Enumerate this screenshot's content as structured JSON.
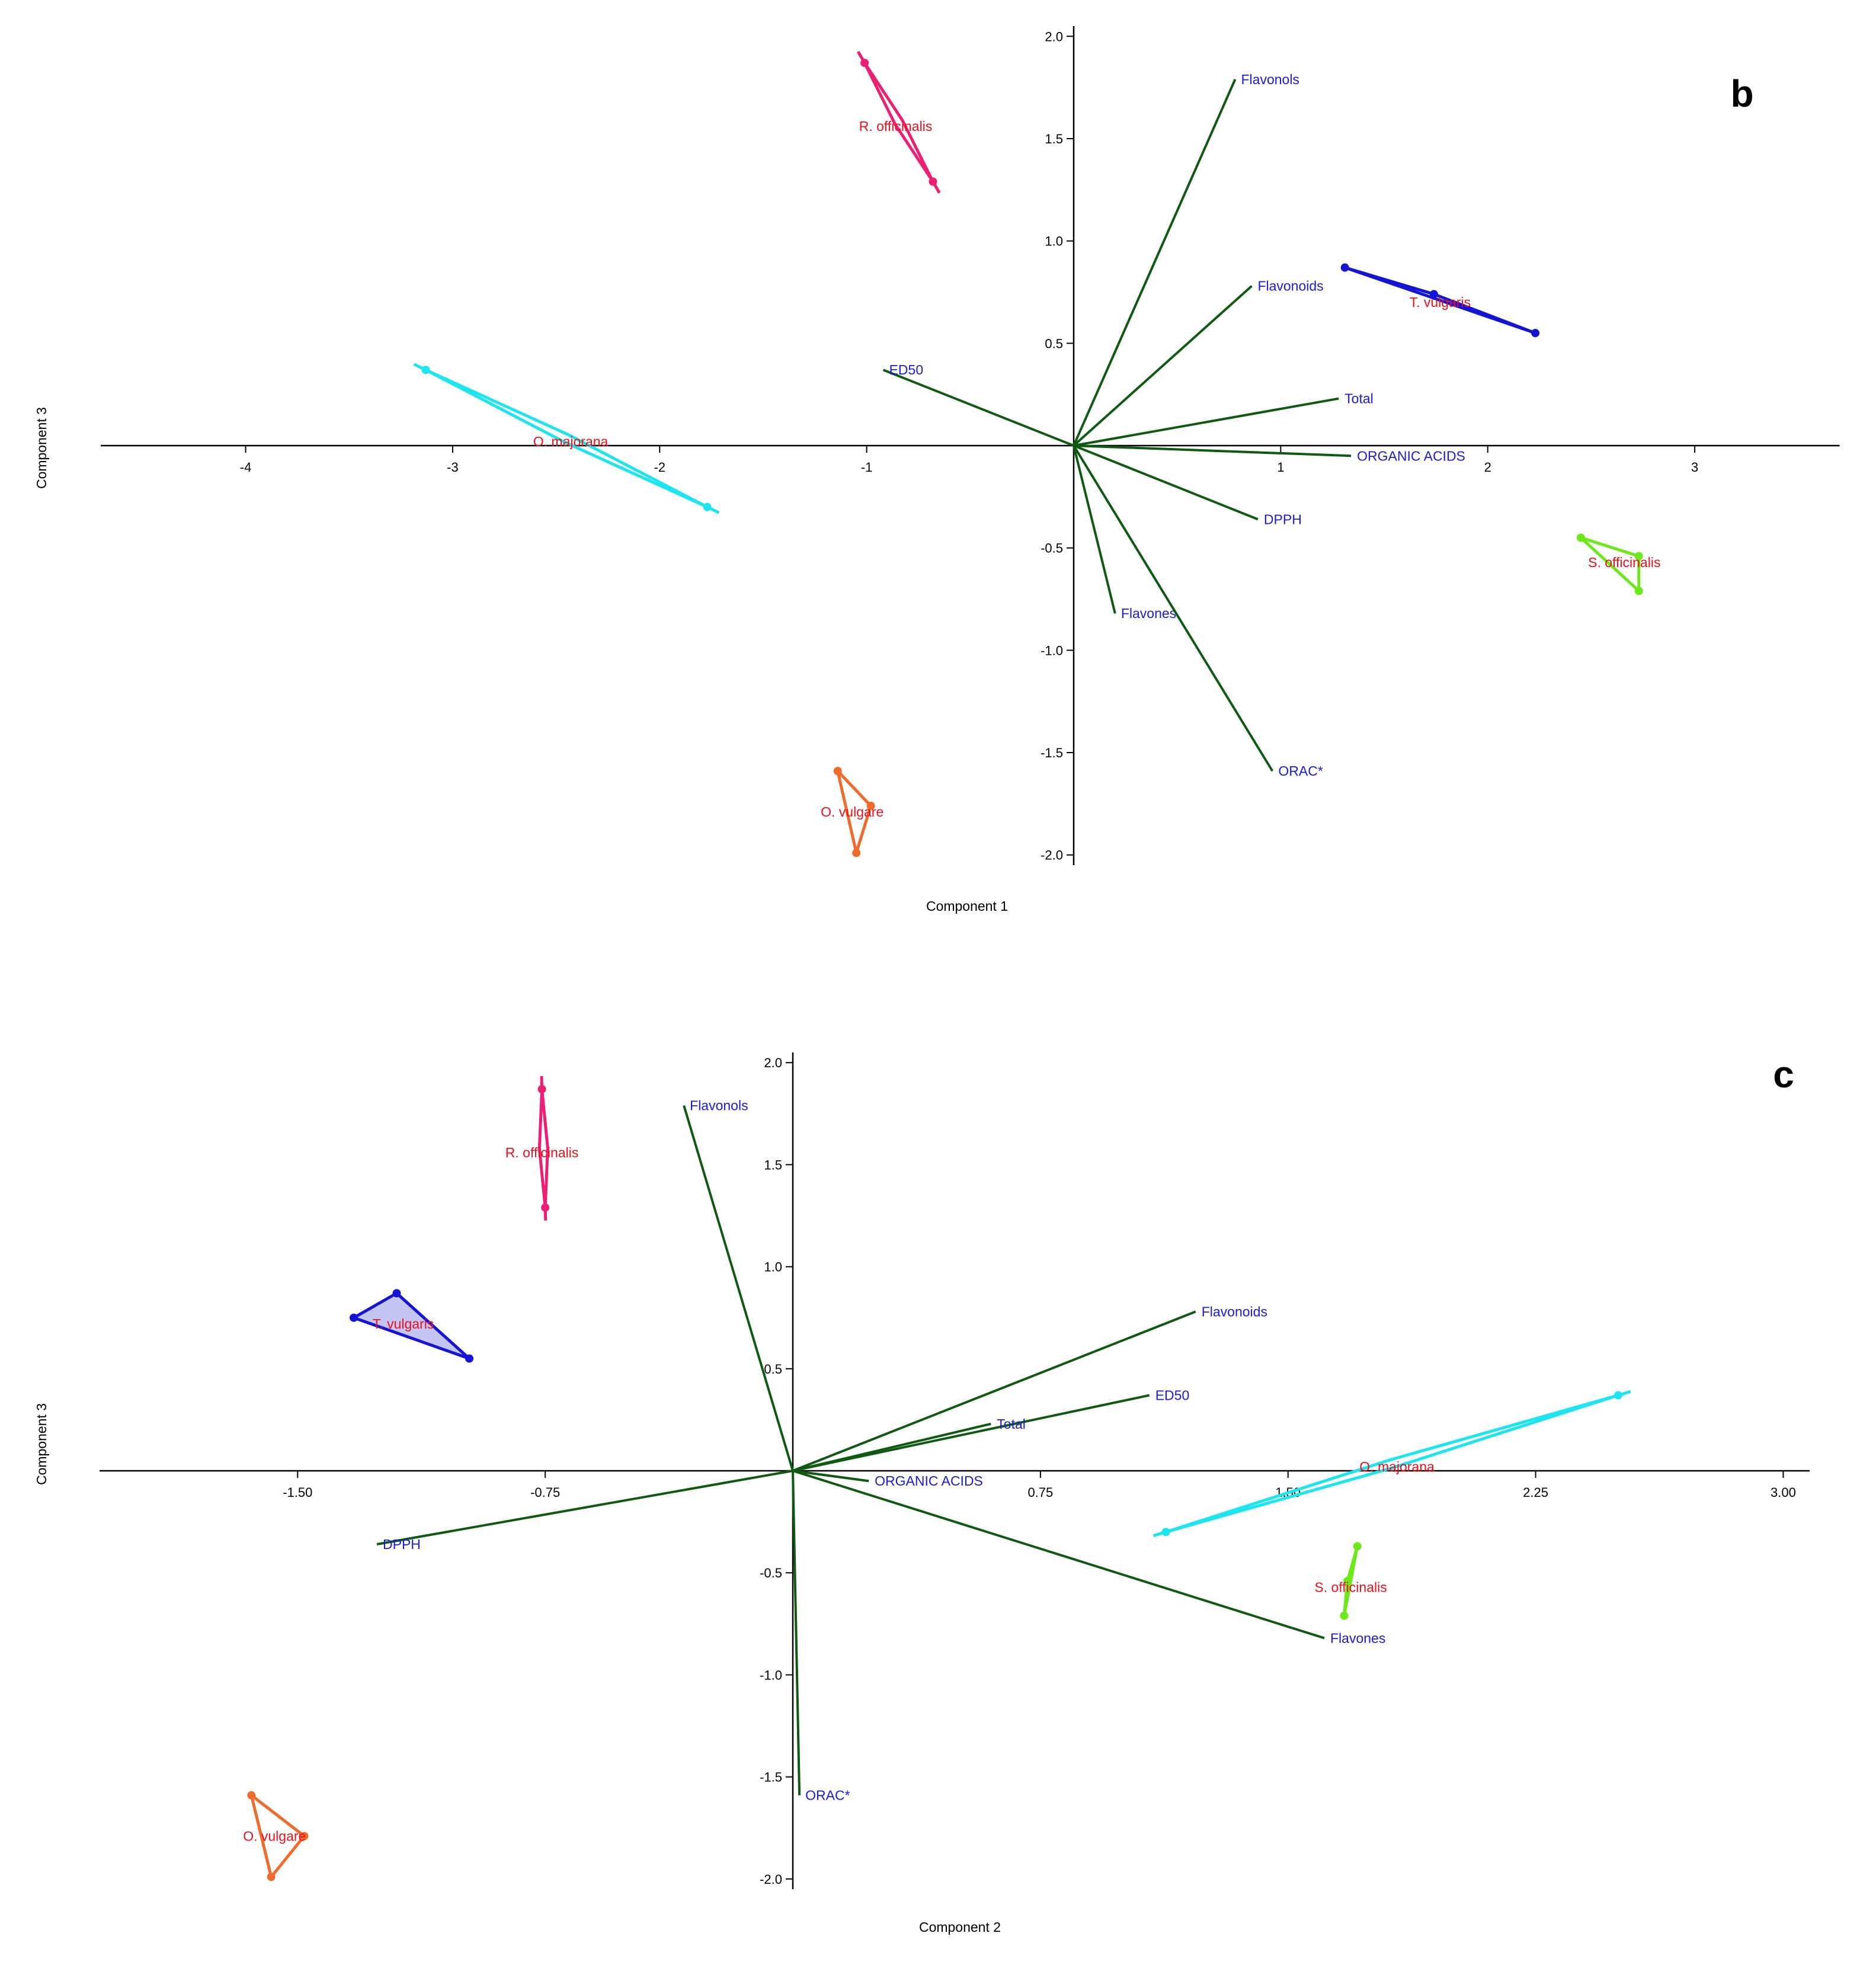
{
  "chart_data": [
    {
      "type": "biplot",
      "panel_label": "b",
      "xlabel": "Component 1",
      "ylabel": "Component 3",
      "xlim": [
        -4.7,
        3.7
      ],
      "ylim": [
        -2.05,
        2.05
      ],
      "xticks": [
        {
          "v": -4,
          "label": "-4"
        },
        {
          "v": -3,
          "label": "-3"
        },
        {
          "v": -2,
          "label": "-2"
        },
        {
          "v": -1,
          "label": "-1"
        },
        {
          "v": 1,
          "label": "1"
        },
        {
          "v": 2,
          "label": "2"
        },
        {
          "v": 3,
          "label": "3"
        }
      ],
      "yticks": [
        {
          "v": 2.0,
          "label": "2.0"
        },
        {
          "v": 1.5,
          "label": "1.5"
        },
        {
          "v": 1.0,
          "label": "1.0"
        },
        {
          "v": 0.5,
          "label": "0.5"
        },
        {
          "v": -0.5,
          "label": "-0.5"
        },
        {
          "v": -1.0,
          "label": "-1.0"
        },
        {
          "v": -1.5,
          "label": "-1.5"
        },
        {
          "v": -2.0,
          "label": "-2.0"
        }
      ],
      "loadings": [
        {
          "name": "Flavonols",
          "x": 0.78,
          "y": 1.79
        },
        {
          "name": "Flavonoids",
          "x": 0.86,
          "y": 0.78
        },
        {
          "name": "ED50",
          "x": -0.92,
          "y": 0.37
        },
        {
          "name": "Total",
          "x": 1.28,
          "y": 0.23
        },
        {
          "name": "ORGANIC ACIDS",
          "x": 1.34,
          "y": -0.05
        },
        {
          "name": "DPPH",
          "x": 0.89,
          "y": -0.36
        },
        {
          "name": "Flavones",
          "x": 0.2,
          "y": -0.82
        },
        {
          "name": "ORAC*",
          "x": 0.96,
          "y": -1.59
        }
      ],
      "samples": [
        {
          "name": "R. officinalis",
          "color": "#ec1f74",
          "fill": false,
          "points": [
            [
              -1.01,
              1.87
            ],
            [
              -0.68,
              1.29
            ]
          ],
          "label_at": [
            -0.86,
            1.56
          ]
        },
        {
          "name": "T. vulgaris",
          "color": "#1414d6",
          "fill": false,
          "points": [
            [
              1.31,
              0.87
            ],
            [
              1.74,
              0.74
            ],
            [
              2.23,
              0.55
            ]
          ],
          "label_at": [
            1.77,
            0.7
          ]
        },
        {
          "name": "O. majorana",
          "color": "#1ce5ef",
          "fill": false,
          "points": [
            [
              -3.13,
              0.37
            ],
            [
              -1.77,
              -0.3
            ]
          ],
          "label_at": [
            -2.43,
            0.02
          ]
        },
        {
          "name": "S. officinalis",
          "color": "#6de81a",
          "fill": false,
          "points": [
            [
              2.45,
              -0.45
            ],
            [
              2.73,
              -0.54
            ],
            [
              2.73,
              -0.71
            ]
          ],
          "label_at": [
            2.66,
            -0.57
          ]
        },
        {
          "name": "O. vulgare",
          "color": "#f06a2c",
          "fill": false,
          "points": [
            [
              -1.14,
              -1.59
            ],
            [
              -1.05,
              -1.99
            ],
            [
              -0.98,
              -1.76
            ]
          ],
          "label_at": [
            -1.07,
            -1.79
          ]
        }
      ]
    },
    {
      "type": "biplot",
      "panel_label": "c",
      "xlabel": "Component 2",
      "ylabel": "Component 3",
      "xlim": [
        -2.1,
        3.08
      ],
      "ylim": [
        -2.05,
        2.05
      ],
      "xticks": [
        {
          "v": -1.5,
          "label": "-1.50"
        },
        {
          "v": -0.75,
          "label": "-0.75"
        },
        {
          "v": 0.75,
          "label": "0.75"
        },
        {
          "v": 1.5,
          "label": "1.50"
        },
        {
          "v": 2.25,
          "label": "2.25"
        },
        {
          "v": 3.0,
          "label": "3.00"
        }
      ],
      "yticks": [
        {
          "v": 2.0,
          "label": "2.0"
        },
        {
          "v": 1.5,
          "label": "1.5"
        },
        {
          "v": 1.0,
          "label": "1.0"
        },
        {
          "v": 0.5,
          "label": "0.5"
        },
        {
          "v": -0.5,
          "label": "-0.5"
        },
        {
          "v": -1.0,
          "label": "-1.0"
        },
        {
          "v": -1.5,
          "label": "-1.5"
        },
        {
          "v": -2.0,
          "label": "-2.0"
        }
      ],
      "loadings": [
        {
          "name": "Flavonols",
          "x": -0.33,
          "y": 1.79
        },
        {
          "name": "Flavonoids",
          "x": 1.22,
          "y": 0.78
        },
        {
          "name": "ED50",
          "x": 1.08,
          "y": 0.37
        },
        {
          "name": "Total",
          "x": 0.6,
          "y": 0.23
        },
        {
          "name": "ORGANIC ACIDS",
          "x": 0.23,
          "y": -0.05
        },
        {
          "name": "DPPH",
          "x": -1.26,
          "y": -0.36
        },
        {
          "name": "Flavones",
          "x": 1.61,
          "y": -0.82
        },
        {
          "name": "ORAC*",
          "x": 0.02,
          "y": -1.59
        }
      ],
      "samples": [
        {
          "name": "R. officinalis",
          "color": "#ec1f74",
          "fill": false,
          "points": [
            [
              -0.76,
              1.87
            ],
            [
              -0.75,
              1.29
            ]
          ],
          "label_at": [
            -0.76,
            1.56
          ]
        },
        {
          "name": "T. vulgaris",
          "color": "#1414d6",
          "fill": true,
          "points": [
            [
              -1.33,
              0.75
            ],
            [
              -1.2,
              0.87
            ],
            [
              -0.98,
              0.55
            ]
          ],
          "label_at": [
            -1.18,
            0.72
          ]
        },
        {
          "name": "O. majorana",
          "color": "#1ce5ef",
          "fill": false,
          "points": [
            [
              2.5,
              0.37
            ],
            [
              1.13,
              -0.3
            ]
          ],
          "label_at": [
            1.83,
            0.02
          ]
        },
        {
          "name": "S. officinalis",
          "color": "#6de81a",
          "fill": false,
          "points": [
            [
              1.71,
              -0.37
            ],
            [
              1.68,
              -0.54
            ],
            [
              1.67,
              -0.71
            ]
          ],
          "label_at": [
            1.69,
            -0.57
          ]
        },
        {
          "name": "O. vulgare",
          "color": "#f06a2c",
          "fill": false,
          "points": [
            [
              -1.64,
              -1.59
            ],
            [
              -1.58,
              -1.99
            ],
            [
              -1.48,
              -1.79
            ]
          ],
          "label_at": [
            -1.57,
            -1.79
          ]
        }
      ]
    }
  ]
}
